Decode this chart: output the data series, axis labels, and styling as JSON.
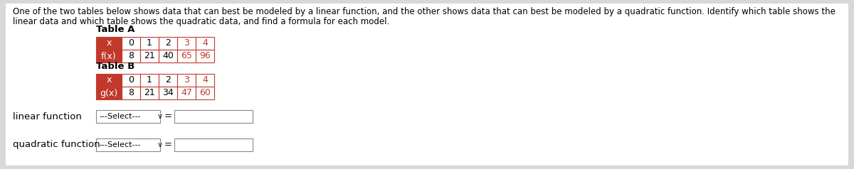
{
  "description_line1": "One of the two tables below shows data that can best be modeled by a linear function, and the other shows data that can best be modeled by a quadratic function. Identify which table shows the",
  "description_line2": "linear data and which table shows the quadratic data, and find a formula for each model.",
  "table_a_label": "Table A",
  "table_b_label": "Table B",
  "table_a_x": [
    "x",
    "0",
    "1",
    "2",
    "3",
    "4"
  ],
  "table_a_fx": [
    "f(x)",
    "8",
    "21",
    "40",
    "65",
    "96"
  ],
  "table_b_x": [
    "x",
    "0",
    "1",
    "2",
    "3",
    "4"
  ],
  "table_b_gx": [
    "g(x)",
    "8",
    "21",
    "34",
    "47",
    "60"
  ],
  "linear_label": "linear function",
  "quadratic_label": "quadratic function",
  "select_label": "---Select---",
  "select_arrow": " v",
  "equals": "=",
  "bg_color": "#d8d8d8",
  "content_bg": "#e8e8e8",
  "table_header_bg": "#c0392b",
  "table_cell_bg": "#ffffff",
  "table_border": "#c0392b",
  "font_size_desc": 8.5,
  "font_size_table": 9.0,
  "font_size_label": 9.5
}
